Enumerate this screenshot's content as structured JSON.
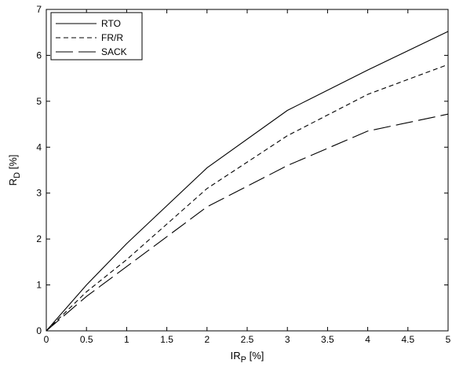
{
  "chart_data": {
    "type": "line",
    "xlabel": {
      "main": "IR",
      "sub": "P",
      "unit": " [%]"
    },
    "ylabel": {
      "main": "R",
      "sub": "D",
      "unit": " [%]"
    },
    "xlim": [
      0,
      5
    ],
    "ylim": [
      0,
      7
    ],
    "x_ticks": [
      0,
      0.5,
      1,
      1.5,
      2,
      2.5,
      3,
      3.5,
      4,
      4.5,
      5
    ],
    "y_ticks": [
      0,
      1,
      2,
      3,
      4,
      5,
      6,
      7
    ],
    "grid": false,
    "legend_position": "top-left",
    "series": [
      {
        "name": "RTO",
        "line_style": "solid",
        "color": "#000000",
        "x": [
          0,
          0.5,
          1,
          2,
          3,
          4,
          5
        ],
        "y": [
          0,
          1.0,
          1.9,
          3.55,
          4.8,
          5.68,
          6.52
        ]
      },
      {
        "name": "FR/R",
        "line_style": "short-dash",
        "color": "#000000",
        "x": [
          0,
          0.5,
          1,
          2,
          3,
          4,
          5
        ],
        "y": [
          0,
          0.85,
          1.55,
          3.1,
          4.25,
          5.15,
          5.8
        ]
      },
      {
        "name": "SACK",
        "line_style": "long-dash",
        "color": "#000000",
        "x": [
          0,
          0.5,
          1,
          2,
          3,
          4,
          5
        ],
        "y": [
          0,
          0.75,
          1.4,
          2.7,
          3.6,
          4.35,
          4.72
        ]
      }
    ]
  }
}
